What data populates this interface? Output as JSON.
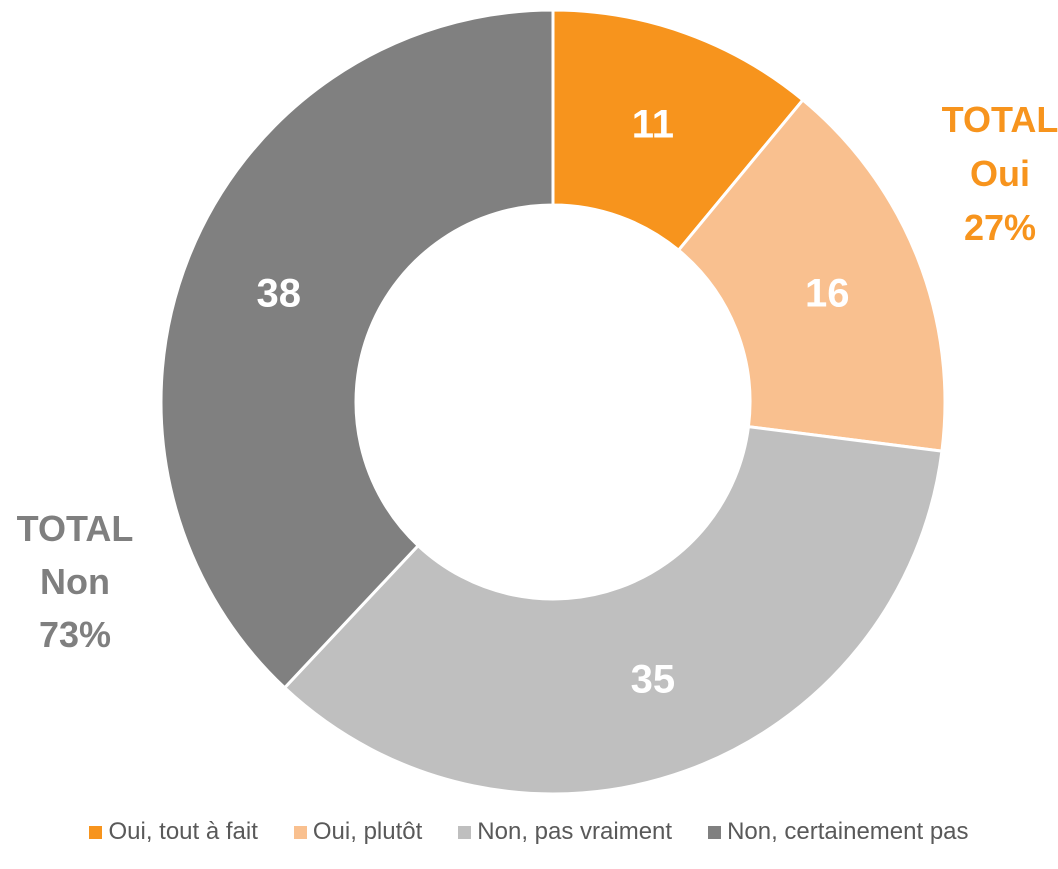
{
  "chart_data": {
    "type": "pie",
    "donut": true,
    "title": "",
    "categories": [
      "Oui, tout à fait",
      "Oui, plutôt",
      "Non, pas vraiment",
      "Non, certainement pas"
    ],
    "values": [
      11,
      16,
      35,
      38
    ],
    "data_labels": [
      "11",
      "16",
      "35",
      "38"
    ],
    "colors": [
      "#F7941D",
      "#F9C08F",
      "#BFBFBF",
      "#808080"
    ],
    "legend_position": "bottom",
    "annotations": [
      {
        "lines": [
          "TOTAL",
          "Oui",
          "27%"
        ],
        "color": "#F7941D"
      },
      {
        "lines": [
          "TOTAL",
          "Non",
          "73%"
        ],
        "color": "#7F7F7F"
      }
    ]
  }
}
